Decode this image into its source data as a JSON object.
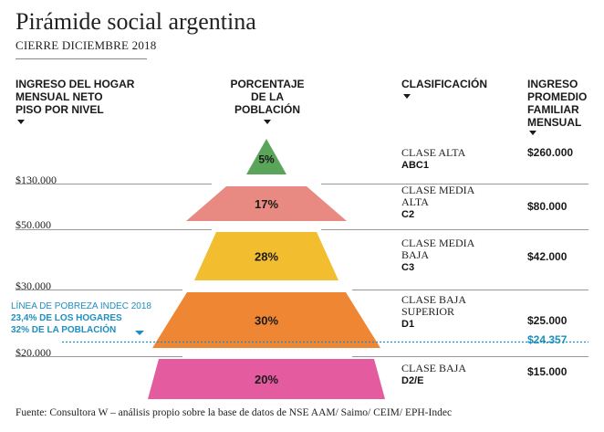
{
  "title": "Pirámide social argentina",
  "subtitle": "CIERRE DICIEMBRE 2018",
  "headers": {
    "threshold": "INGRESO DEL HOGAR\nMENSUAL NETO\nPISO POR NIVEL",
    "percentage": "PORCENTAJE\nDE LA\nPOBLACIÓN",
    "classification": "CLASIFICACIÓN",
    "income": "INGRESO\nPROMEDIO\nFAMILIAR\nMENSUAL"
  },
  "thresholds": [
    "$130.000",
    "$50.000",
    "$30.000",
    "$20.000"
  ],
  "poverty": {
    "line1": "LÍNEA DE POBREZA INDEC 2018",
    "line2": "23,4% DE LOS HOGARES",
    "line3": "32% DE LA POBLACIÓN",
    "income": "$24.357",
    "color": "#1f8fbf"
  },
  "chart_data": {
    "type": "bar",
    "categories": [
      "CLASE ALTA ABC1",
      "CLASE MEDIA ALTA C2",
      "CLASE MEDIA BAJA C3",
      "CLASE BAJA SUPERIOR D1",
      "CLASE BAJA D2/E"
    ],
    "series": [
      {
        "values": [
          5,
          17,
          28,
          30,
          20
        ],
        "unit": "%"
      }
    ],
    "levels": [
      {
        "name": "CLASE ALTA",
        "code": "ABC1",
        "percent": 5,
        "percent_label": "5%",
        "income": "$260.000",
        "color": "#5aa55a"
      },
      {
        "name": "CLASE MEDIA\nALTA",
        "code": "C2",
        "percent": 17,
        "percent_label": "17%",
        "income": "$80.000",
        "color": "#e88a82"
      },
      {
        "name": "CLASE MEDIA\nBAJA",
        "code": "C3",
        "percent": 28,
        "percent_label": "28%",
        "income": "$42.000",
        "color": "#f2bd2e"
      },
      {
        "name": "CLASE BAJA\nSUPERIOR",
        "code": "D1",
        "percent": 30,
        "percent_label": "30%",
        "income": "$25.000",
        "color": "#ee8633"
      },
      {
        "name": "CLASE BAJA",
        "code": "D2/E",
        "percent": 20,
        "percent_label": "20%",
        "income": "$15.000",
        "color": "#e55ba0"
      }
    ]
  },
  "source": "Fuente: Consultora W – análisis propio sobre la base de datos de NSE AAM/ Saimo/ CEIM/ EPH-Indec"
}
